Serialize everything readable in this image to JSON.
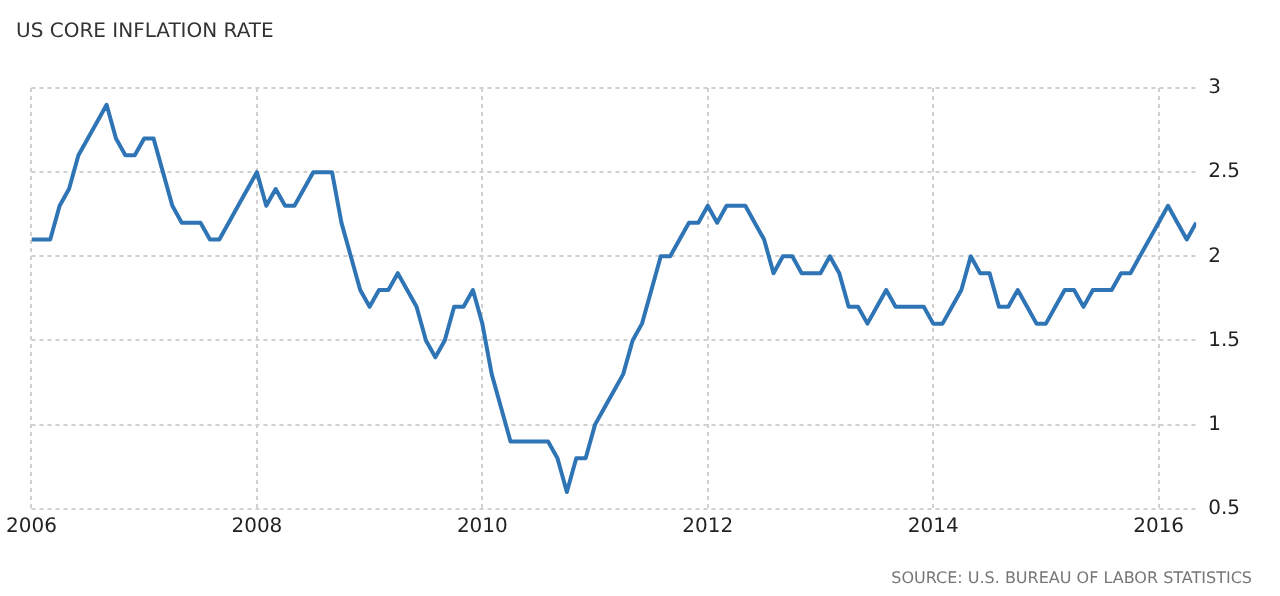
{
  "chart_data": {
    "type": "line",
    "title": "US CORE INFLATION RATE",
    "annotations": [
      "SOURCE: U.S. BUREAU OF LABOR STATISTICS"
    ],
    "x": [
      "2006-01",
      "2006-02",
      "2006-03",
      "2006-04",
      "2006-05",
      "2006-06",
      "2006-07",
      "2006-08",
      "2006-09",
      "2006-10",
      "2006-11",
      "2006-12",
      "2007-01",
      "2007-02",
      "2007-03",
      "2007-04",
      "2007-05",
      "2007-06",
      "2007-07",
      "2007-08",
      "2007-09",
      "2007-10",
      "2007-11",
      "2007-12",
      "2008-01",
      "2008-02",
      "2008-03",
      "2008-04",
      "2008-05",
      "2008-06",
      "2008-07",
      "2008-08",
      "2008-09",
      "2008-10",
      "2008-11",
      "2008-12",
      "2009-01",
      "2009-02",
      "2009-03",
      "2009-04",
      "2009-05",
      "2009-06",
      "2009-07",
      "2009-08",
      "2009-09",
      "2009-10",
      "2009-11",
      "2009-12",
      "2010-01",
      "2010-02",
      "2010-03",
      "2010-04",
      "2010-05",
      "2010-06",
      "2010-07",
      "2010-08",
      "2010-09",
      "2010-10",
      "2010-11",
      "2010-12",
      "2011-01",
      "2011-02",
      "2011-03",
      "2011-04",
      "2011-05",
      "2011-06",
      "2011-07",
      "2011-08",
      "2011-09",
      "2011-10",
      "2011-11",
      "2011-12",
      "2012-01",
      "2012-02",
      "2012-03",
      "2012-04",
      "2012-05",
      "2012-06",
      "2012-07",
      "2012-08",
      "2012-09",
      "2012-10",
      "2012-11",
      "2012-12",
      "2013-01",
      "2013-02",
      "2013-03",
      "2013-04",
      "2013-05",
      "2013-06",
      "2013-07",
      "2013-08",
      "2013-09",
      "2013-10",
      "2013-11",
      "2013-12",
      "2014-01",
      "2014-02",
      "2014-03",
      "2014-04",
      "2014-05",
      "2014-06",
      "2014-07",
      "2014-08",
      "2014-09",
      "2014-10",
      "2014-11",
      "2014-12",
      "2015-01",
      "2015-02",
      "2015-03",
      "2015-04",
      "2015-05",
      "2015-06",
      "2015-07",
      "2015-08",
      "2015-09",
      "2015-10",
      "2015-11",
      "2015-12",
      "2016-01",
      "2016-02",
      "2016-03",
      "2016-04",
      "2016-05"
    ],
    "series": [
      {
        "color": "#2f75b5",
        "values": [
          2.1,
          2.1,
          2.1,
          2.3,
          2.4,
          2.6,
          2.7,
          2.8,
          2.9,
          2.7,
          2.6,
          2.6,
          2.7,
          2.7,
          2.5,
          2.3,
          2.2,
          2.2,
          2.2,
          2.1,
          2.1,
          2.2,
          2.3,
          2.4,
          2.5,
          2.3,
          2.4,
          2.3,
          2.3,
          2.4,
          2.5,
          2.5,
          2.5,
          2.2,
          2.0,
          1.8,
          1.7,
          1.8,
          1.8,
          1.9,
          1.8,
          1.7,
          1.5,
          1.4,
          1.5,
          1.7,
          1.7,
          1.8,
          1.6,
          1.3,
          1.1,
          0.9,
          0.9,
          0.9,
          0.9,
          0.9,
          0.8,
          0.6,
          0.8,
          0.8,
          1.0,
          1.1,
          1.2,
          1.3,
          1.5,
          1.6,
          1.8,
          2.0,
          2.0,
          2.1,
          2.2,
          2.2,
          2.3,
          2.2,
          2.3,
          2.3,
          2.3,
          2.2,
          2.1,
          1.9,
          2.0,
          2.0,
          1.9,
          1.9,
          1.9,
          2.0,
          1.9,
          1.7,
          1.7,
          1.6,
          1.7,
          1.8,
          1.7,
          1.7,
          1.7,
          1.7,
          1.6,
          1.6,
          1.7,
          1.8,
          2.0,
          1.9,
          1.9,
          1.7,
          1.7,
          1.8,
          1.7,
          1.6,
          1.6,
          1.7,
          1.8,
          1.8,
          1.7,
          1.8,
          1.8,
          1.8,
          1.9,
          1.9,
          2.0,
          2.1,
          2.2,
          2.3,
          2.2,
          2.1,
          2.2
        ]
      }
    ],
    "xlim": [
      "2006-01",
      "2016-05"
    ],
    "xticks": [
      "2006",
      "2008",
      "2010",
      "2012",
      "2014",
      "2016"
    ],
    "ylim": [
      0.5,
      3
    ],
    "yticks": [
      0.5,
      1,
      1.5,
      2,
      2.5,
      3
    ],
    "grid": true,
    "line_style": "solid",
    "marker": "none",
    "legend": false
  }
}
